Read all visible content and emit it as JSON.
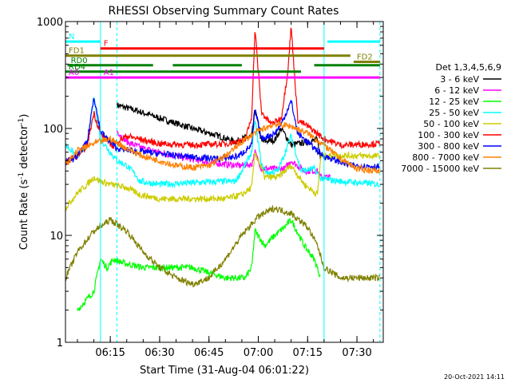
{
  "chart_data": {
    "type": "line",
    "title": "RHESSI Observing Summary Count Rates",
    "xlabel": "Start Time (31-Aug-04 06:01:22)",
    "ylabel": "Count Rate (s",
    "ylabel_exp": "-1",
    "ylabel_tail": " detector",
    "ylabel_exp2": "-1",
    "ylabel_close": ")",
    "yscale": "log",
    "ylim": [
      1,
      1000
    ],
    "xlim": [
      "06:01:22",
      "07:38:00"
    ],
    "x_ticks": [
      "06:15",
      "06:30",
      "06:45",
      "07:00",
      "07:15",
      "07:30"
    ],
    "y_ticks": [
      "1",
      "10",
      "100",
      "1000"
    ],
    "legend_title": "Det 1,3,4,5,6,9",
    "legend_position": "right",
    "footer_date": "20-Oct-2021 14:11",
    "series": [
      {
        "name": "3 - 6 keV",
        "color": "#000000",
        "points": [
          [
            "06:17",
            165
          ],
          [
            "06:22",
            150
          ],
          [
            "06:30",
            125
          ],
          [
            "06:40",
            100
          ],
          [
            "06:48",
            85
          ],
          [
            "06:53",
            75
          ],
          [
            "06:56",
            82
          ],
          [
            "06:58",
            85
          ],
          [
            "06:59",
            150
          ],
          [
            "07:01",
            75
          ],
          [
            "07:05",
            78
          ],
          [
            "07:07",
            100
          ],
          [
            "07:10",
            70
          ],
          [
            "07:15",
            75
          ],
          [
            "07:18",
            78
          ],
          [
            "07:19",
            50
          ]
        ]
      },
      {
        "name": "6 - 12 keV",
        "color": "#ff00ff",
        "points": [
          [
            "06:17",
            95
          ],
          [
            "06:20",
            75
          ],
          [
            "06:25",
            65
          ],
          [
            "06:35",
            55
          ],
          [
            "06:45",
            48
          ],
          [
            "06:54",
            45
          ],
          [
            "06:58",
            46
          ],
          [
            "06:59",
            60
          ],
          [
            "07:01",
            42
          ],
          [
            "07:08",
            42
          ],
          [
            "07:10",
            50
          ],
          [
            "07:14",
            40
          ],
          [
            "07:18",
            40
          ],
          [
            "07:19",
            35
          ],
          [
            "07:22",
            35
          ]
        ]
      },
      {
        "name": "12 - 25 keV",
        "color": "#00ff00",
        "points": [
          [
            "06:05",
            2
          ],
          [
            "06:10",
            3
          ],
          [
            "06:12",
            6
          ],
          [
            "06:14",
            5
          ],
          [
            "06:16",
            6
          ],
          [
            "06:19",
            5.5
          ],
          [
            "06:25",
            5
          ],
          [
            "06:30",
            5
          ],
          [
            "06:40",
            5
          ],
          [
            "06:50",
            4
          ],
          [
            "06:56",
            4
          ],
          [
            "06:58",
            5
          ],
          [
            "06:59",
            11
          ],
          [
            "07:02",
            8
          ],
          [
            "07:05",
            10
          ],
          [
            "07:08",
            12
          ],
          [
            "07:10",
            14
          ],
          [
            "07:14",
            8
          ],
          [
            "07:17",
            6
          ],
          [
            "07:19",
            4
          ]
        ]
      },
      {
        "name": "25 - 50 keV",
        "color": "#00ffff",
        "points": [
          [
            "06:01:22",
            70
          ],
          [
            "06:05",
            55
          ],
          [
            "06:08",
            70
          ],
          [
            "06:10",
            200
          ],
          [
            "06:12",
            80
          ],
          [
            "06:15",
            60
          ],
          [
            "06:17",
            50
          ],
          [
            "06:20",
            45
          ],
          [
            "06:23",
            36
          ],
          [
            "06:24",
            32
          ],
          [
            "06:30",
            30
          ],
          [
            "06:40",
            31
          ],
          [
            "06:50",
            32
          ],
          [
            "06:53",
            32
          ],
          [
            "06:55",
            40
          ],
          [
            "06:58",
            60
          ],
          [
            "06:59",
            120
          ],
          [
            "07:01",
            45
          ],
          [
            "07:03",
            38
          ],
          [
            "07:06",
            40
          ],
          [
            "07:10",
            85
          ],
          [
            "07:13",
            40
          ],
          [
            "07:17",
            42
          ],
          [
            "07:19",
            34
          ],
          [
            "07:25",
            32
          ],
          [
            "07:37",
            30
          ]
        ]
      },
      {
        "name": "50 - 100 keV",
        "color": "#cccc00",
        "points": [
          [
            "06:01:22",
            18
          ],
          [
            "06:05",
            25
          ],
          [
            "06:08",
            30
          ],
          [
            "06:10",
            35
          ],
          [
            "06:12",
            32
          ],
          [
            "06:15",
            30
          ],
          [
            "06:20",
            28
          ],
          [
            "06:24",
            24
          ],
          [
            "06:30",
            22
          ],
          [
            "06:40",
            22
          ],
          [
            "06:50",
            22
          ],
          [
            "06:55",
            24
          ],
          [
            "06:58",
            28
          ],
          [
            "06:59",
            60
          ],
          [
            "07:02",
            35
          ],
          [
            "07:06",
            35
          ],
          [
            "07:10",
            45
          ],
          [
            "07:14",
            30
          ],
          [
            "07:18",
            24
          ],
          [
            "07:19",
            55
          ],
          [
            "07:25",
            56
          ],
          [
            "07:37",
            55
          ]
        ]
      },
      {
        "name": "100 - 300 keV",
        "color": "#ff0000",
        "points": [
          [
            "06:01:22",
            48
          ],
          [
            "06:05",
            55
          ],
          [
            "06:08",
            70
          ],
          [
            "06:10",
            140
          ],
          [
            "06:12",
            90
          ],
          [
            "06:16",
            68
          ],
          [
            "06:17",
            75
          ],
          [
            "06:20",
            85
          ],
          [
            "06:25",
            78
          ],
          [
            "06:30",
            72
          ],
          [
            "06:40",
            70
          ],
          [
            "06:50",
            72
          ],
          [
            "06:56",
            78
          ],
          [
            "06:58",
            130
          ],
          [
            "06:59",
            850
          ],
          [
            "07:01",
            140
          ],
          [
            "07:04",
            110
          ],
          [
            "07:07",
            125
          ],
          [
            "07:09",
            350
          ],
          [
            "07:10",
            900
          ],
          [
            "07:12",
            120
          ],
          [
            "07:16",
            100
          ],
          [
            "07:20",
            80
          ],
          [
            "07:25",
            70
          ],
          [
            "07:37",
            72
          ]
        ]
      },
      {
        "name": "300 - 800 keV",
        "color": "#0000ff",
        "points": [
          [
            "06:01:22",
            48
          ],
          [
            "06:05",
            55
          ],
          [
            "06:08",
            75
          ],
          [
            "06:10",
            200
          ],
          [
            "06:12",
            95
          ],
          [
            "06:14",
            80
          ],
          [
            "06:17",
            65
          ],
          [
            "06:22",
            62
          ],
          [
            "06:30",
            58
          ],
          [
            "06:40",
            54
          ],
          [
            "06:48",
            52
          ],
          [
            "06:54",
            55
          ],
          [
            "06:58",
            70
          ],
          [
            "06:59",
            150
          ],
          [
            "07:01",
            80
          ],
          [
            "07:05",
            90
          ],
          [
            "07:07",
            110
          ],
          [
            "07:10",
            180
          ],
          [
            "07:12",
            90
          ],
          [
            "07:16",
            70
          ],
          [
            "07:20",
            55
          ],
          [
            "07:28",
            45
          ],
          [
            "07:37",
            44
          ]
        ]
      },
      {
        "name": "800 - 7000 keV",
        "color": "#ff8000",
        "points": [
          [
            "06:01:22",
            45
          ],
          [
            "06:05",
            62
          ],
          [
            "06:10",
            72
          ],
          [
            "06:15",
            80
          ],
          [
            "06:20",
            65
          ],
          [
            "06:25",
            55
          ],
          [
            "06:30",
            50
          ],
          [
            "06:35",
            45
          ],
          [
            "06:40",
            43
          ],
          [
            "06:45",
            45
          ],
          [
            "06:50",
            55
          ],
          [
            "06:55",
            75
          ],
          [
            "07:00",
            95
          ],
          [
            "07:05",
            110
          ],
          [
            "07:10",
            105
          ],
          [
            "07:15",
            90
          ],
          [
            "07:20",
            70
          ],
          [
            "07:25",
            52
          ],
          [
            "07:30",
            42
          ],
          [
            "07:37",
            40
          ]
        ]
      },
      {
        "name": "7000 - 15000 keV",
        "color": "#808000",
        "points": [
          [
            "06:01:22",
            4
          ],
          [
            "06:05",
            7
          ],
          [
            "06:10",
            11
          ],
          [
            "06:15",
            14
          ],
          [
            "06:20",
            11
          ],
          [
            "06:25",
            7
          ],
          [
            "06:30",
            5
          ],
          [
            "06:35",
            4
          ],
          [
            "06:40",
            3.5
          ],
          [
            "06:45",
            4
          ],
          [
            "06:50",
            6
          ],
          [
            "06:55",
            10
          ],
          [
            "07:00",
            15
          ],
          [
            "07:05",
            18
          ],
          [
            "07:10",
            16
          ],
          [
            "07:15",
            12
          ],
          [
            "07:18",
            8
          ],
          [
            "07:20",
            5
          ],
          [
            "07:25",
            4
          ],
          [
            "07:37",
            4
          ]
        ]
      }
    ],
    "markers": [
      {
        "label": "N",
        "color": "#00ffff",
        "segments": [
          [
            "06:01:22",
            "06:12"
          ],
          [
            "07:21",
            "07:37"
          ]
        ],
        "level": 650
      },
      {
        "label": "F",
        "color": "#ff0000",
        "segments": [
          [
            "06:12",
            "07:20"
          ]
        ],
        "level": 560
      },
      {
        "label": "FD1",
        "color": "#808000",
        "segments": [
          [
            "06:01:22",
            "07:28"
          ]
        ],
        "level": 480
      },
      {
        "label": "FD2",
        "color": "#808000",
        "segments": [
          [
            "07:29",
            "07:37"
          ]
        ],
        "level": 420
      },
      {
        "label": "RD0",
        "color": "#008000",
        "segments": [
          [
            "06:02",
            "06:28"
          ],
          [
            "06:34",
            "06:55"
          ],
          [
            "07:17",
            "07:37"
          ]
        ],
        "level": 390
      },
      {
        "label": "RD4",
        "color": "#008000",
        "segments": [
          [
            "06:01:22",
            "07:13"
          ]
        ],
        "level": 340
      },
      {
        "label": "A0",
        "color": "#ff00ff",
        "segments": [
          [
            "06:01:22",
            "06:12"
          ]
        ],
        "level": 300
      },
      {
        "label": "A1",
        "color": "#ff00ff",
        "segments": [
          [
            "06:12",
            "07:37"
          ]
        ],
        "level": 300
      }
    ],
    "vlines": [
      {
        "time": "06:12",
        "color": "#00ffff",
        "style": "solid"
      },
      {
        "time": "06:17",
        "color": "#00ffff",
        "style": "dashed"
      },
      {
        "time": "07:20",
        "color": "#00ffff",
        "style": "solid"
      },
      {
        "time": "07:37",
        "color": "#00ffff",
        "style": "dashed"
      }
    ]
  }
}
